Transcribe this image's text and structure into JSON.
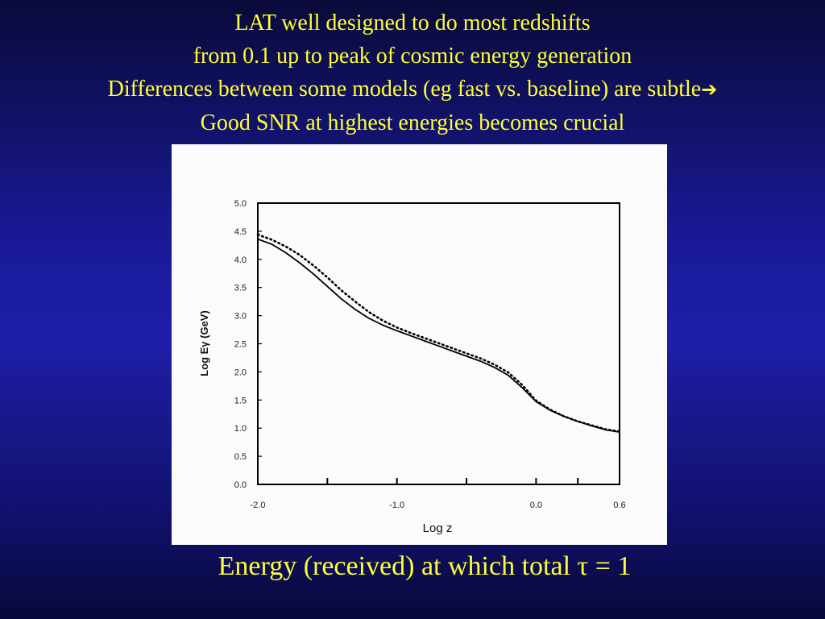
{
  "slide": {
    "title_lines": [
      "LAT well designed to do  most redshifts",
      "from 0.1 up to peak of cosmic energy generation",
      "Differences between some models (eg fast vs. baseline) are subtle",
      "Good SNR at highest energies becomes crucial"
    ],
    "arrow_icon": "right-arrow-icon",
    "caption": "Energy (received) at which total τ = 1",
    "text_color": "#ffff33"
  },
  "chart_data": {
    "type": "line",
    "xlabel": "Log z",
    "ylabel": "Log Eγ (GeV)",
    "xlim": [
      -2.0,
      0.6
    ],
    "ylim": [
      0.0,
      5.0
    ],
    "x_ticks": [
      "-2.0",
      "-1.0",
      "0.0",
      "0.6"
    ],
    "x_tick_values": [
      -2.0,
      -1.0,
      0.0,
      0.6
    ],
    "y_ticks": [
      "0.0",
      "0.5",
      "1.0",
      "1.5",
      "2.0",
      "2.5",
      "3.0",
      "3.5",
      "4.0",
      "4.5",
      "5.0"
    ],
    "y_tick_values": [
      0.0,
      0.5,
      1.0,
      1.5,
      2.0,
      2.5,
      3.0,
      3.5,
      4.0,
      4.5,
      5.0
    ],
    "legend": "none",
    "grid": false,
    "series": [
      {
        "style": "solid",
        "color": "#000000",
        "x": [
          -2.0,
          -1.9,
          -1.8,
          -1.7,
          -1.6,
          -1.5,
          -1.4,
          -1.3,
          -1.2,
          -1.1,
          -1.0,
          -0.9,
          -0.8,
          -0.7,
          -0.6,
          -0.5,
          -0.4,
          -0.3,
          -0.2,
          -0.1,
          0.0,
          0.1,
          0.2,
          0.3,
          0.4,
          0.5,
          0.6
        ],
        "y": [
          4.36,
          4.27,
          4.12,
          3.94,
          3.74,
          3.52,
          3.3,
          3.11,
          2.95,
          2.83,
          2.73,
          2.64,
          2.55,
          2.46,
          2.37,
          2.28,
          2.19,
          2.08,
          1.94,
          1.72,
          1.47,
          1.32,
          1.21,
          1.12,
          1.04,
          0.97,
          0.93
        ]
      },
      {
        "style": "dotted",
        "color": "#000000",
        "x": [
          -2.0,
          -1.9,
          -1.8,
          -1.7,
          -1.6,
          -1.5,
          -1.4,
          -1.3,
          -1.2,
          -1.1,
          -1.0,
          -0.9,
          -0.8,
          -0.7,
          -0.6,
          -0.5,
          -0.4,
          -0.3,
          -0.2,
          -0.1,
          0.0,
          0.1,
          0.2,
          0.3,
          0.4,
          0.5,
          0.6
        ],
        "y": [
          4.44,
          4.35,
          4.23,
          4.08,
          3.89,
          3.68,
          3.45,
          3.25,
          3.06,
          2.91,
          2.79,
          2.69,
          2.6,
          2.51,
          2.42,
          2.33,
          2.24,
          2.13,
          1.99,
          1.77,
          1.49,
          1.33,
          1.21,
          1.12,
          1.05,
          0.98,
          0.94
        ]
      }
    ]
  }
}
